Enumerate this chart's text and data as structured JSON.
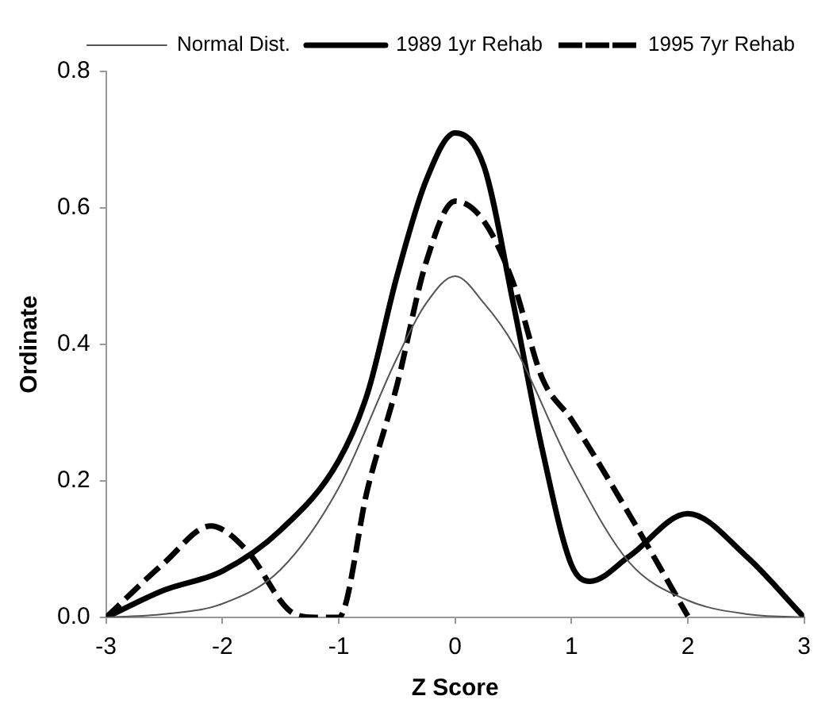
{
  "chart_data": {
    "type": "line",
    "xlabel": "Z Score",
    "ylabel": "Ordinate",
    "xlim": [
      -3,
      3
    ],
    "xticks": [
      -3,
      -2,
      -1,
      0,
      1,
      2,
      3
    ],
    "ylim": [
      0,
      0.8
    ],
    "yticks": [
      {
        "value": 0,
        "label": "0.0"
      },
      0.2,
      0.4,
      0.6,
      0.8
    ],
    "grid": false,
    "legend": "top right",
    "marker": "none",
    "series": [
      {
        "name": "Normal Dist.",
        "color": "#555555",
        "line_style": "solid",
        "x": [
          -3,
          -2.5,
          -2,
          -1.5,
          -1,
          -0.5,
          -0.25,
          0,
          0.25,
          0.5,
          1,
          1.5,
          2,
          2.5,
          3
        ],
        "values": [
          0,
          0.005,
          0.02,
          0.07,
          0.19,
          0.38,
          0.46,
          0.5,
          0.46,
          0.4,
          0.22,
          0.08,
          0.025,
          0.005,
          0
        ]
      },
      {
        "name": "1989 1yr Rehab",
        "color": "#000000",
        "line_style": "solid",
        "x": [
          -3,
          -2.5,
          -2,
          -1.5,
          -1,
          -0.75,
          -0.5,
          -0.25,
          0,
          0.25,
          0.5,
          0.75,
          1,
          1.16,
          1.5,
          2,
          2.5,
          3
        ],
        "values": [
          0,
          0.04,
          0.068,
          0.128,
          0.23,
          0.33,
          0.5,
          0.64,
          0.71,
          0.66,
          0.46,
          0.245,
          0.077,
          0.053,
          0.09,
          0.152,
          0.09,
          0
        ]
      },
      {
        "name": "1995 7yr Rehab",
        "color": "#000000",
        "line_style": "dashed",
        "x": [
          -3,
          -2.5,
          -2.1,
          -1.8,
          -1.4,
          -1.2,
          -1,
          -0.75,
          -0.5,
          -0.25,
          0,
          0.25,
          0.5,
          0.75,
          1,
          1.5,
          2
        ],
        "values": [
          0,
          0.08,
          0.134,
          0.1,
          0.007,
          0,
          0,
          0.19,
          0.34,
          0.52,
          0.61,
          0.58,
          0.49,
          0.35,
          0.29,
          0.15,
          0.002
        ]
      }
    ]
  }
}
